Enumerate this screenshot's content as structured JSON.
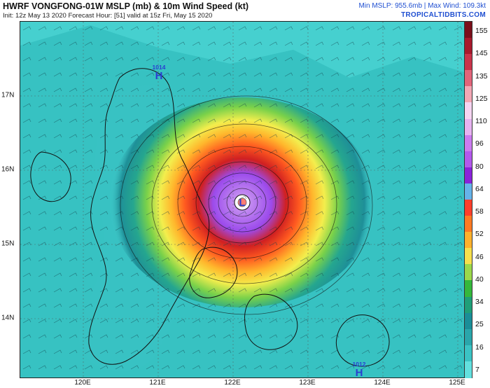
{
  "header": {
    "title": "HWRF VONGFONG-01W MSLP (mb) & 10m Wind Speed (kt)",
    "subtitle": "Init: 12z May 13 2020   Forecast Hour: [51]   valid at 15z Fri, May 15 2020",
    "stats": "Min MSLP: 955.6mb | Max Wind: 109.3kt",
    "brand": "TROPICALTIDBITS.COM"
  },
  "map": {
    "lat_labels": [
      "17N",
      "16N",
      "15N",
      "14N"
    ],
    "lon_labels": [
      "120E",
      "121E",
      "122E",
      "123E",
      "124E",
      "125E"
    ],
    "pressure_centers": [
      {
        "type": "H",
        "value": "1014",
        "color": "#2a3fd0"
      },
      {
        "type": "L",
        "value": "",
        "color": "#2a3fd0"
      },
      {
        "type": "H",
        "value": "1012",
        "color": "#2a3fd0"
      }
    ]
  },
  "colorbar": {
    "labels": [
      "155",
      "145",
      "135",
      "125",
      "110",
      "96",
      "80",
      "64",
      "58",
      "52",
      "46",
      "40",
      "34",
      "25",
      "16",
      "7"
    ],
    "colors": [
      "#7b0f1b",
      "#a81a2c",
      "#c9344a",
      "#e2657a",
      "#f3a8b5",
      "#f6d5f2",
      "#e7b3f1",
      "#cb7cf0",
      "#b259ec",
      "#8a22d9",
      "#66b3e9",
      "#ff3f2b",
      "#ff7a23",
      "#ffb12d",
      "#f7e04c",
      "#9bd84b",
      "#35b83c",
      "#1f9f78",
      "#1a8e98",
      "#2aa6ab",
      "#3bc3c4",
      "#63e0df"
    ]
  }
}
